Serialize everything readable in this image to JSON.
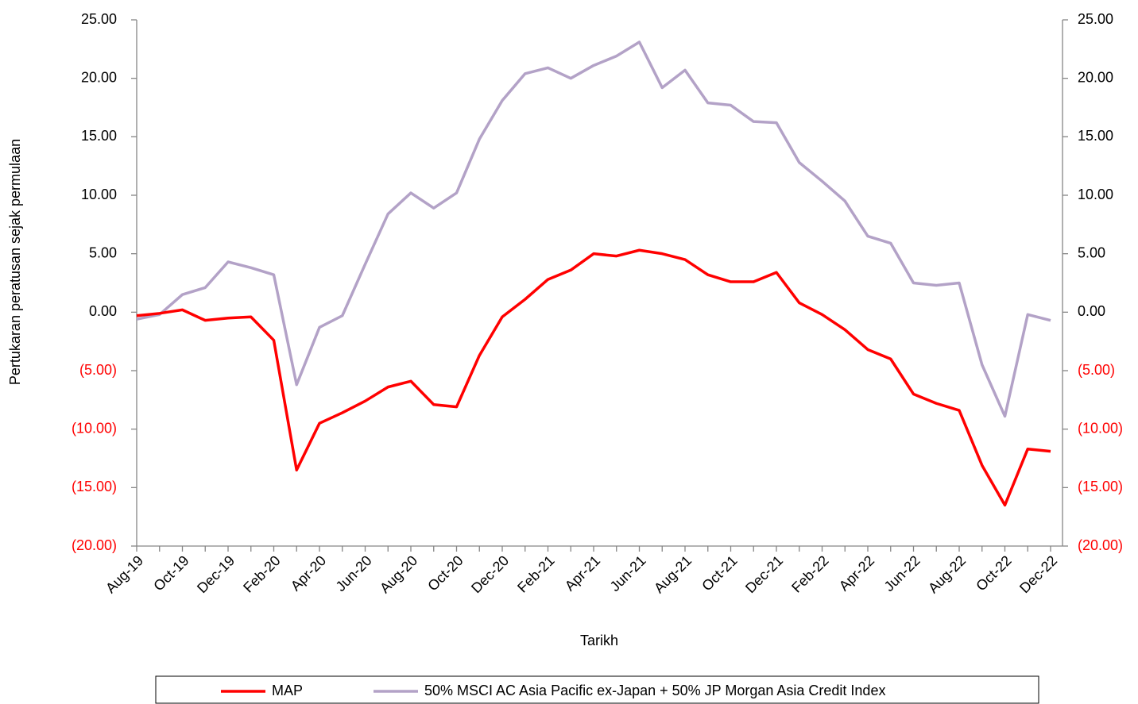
{
  "chart_data": {
    "type": "line",
    "y_label": "Pertukaran peratusan sejak permulaan",
    "x_label": "Tarikh",
    "categories": [
      "Aug-19",
      null,
      "Oct-19",
      null,
      "Dec-19",
      null,
      "Feb-20",
      null,
      "Apr-20",
      null,
      "Jun-20",
      null,
      "Aug-20",
      null,
      "Oct-20",
      null,
      "Dec-20",
      null,
      "Feb-21",
      null,
      "Apr-21",
      null,
      "Jun-21",
      null,
      "Aug-21",
      null,
      "Oct-21",
      null,
      "Dec-21",
      null,
      "Feb-22",
      null,
      "Apr-22",
      null,
      "Jun-22",
      null,
      "Aug-22",
      null,
      "Oct-22",
      null,
      "Dec-22"
    ],
    "series": [
      {
        "name": "MAP",
        "color": "#ff0000",
        "values": [
          -0.3,
          -0.1,
          0.2,
          -0.7,
          -0.5,
          -0.4,
          -2.4,
          -13.5,
          -9.5,
          -8.6,
          -7.6,
          -6.4,
          -5.9,
          -7.9,
          -8.1,
          -3.7,
          -0.4,
          1.1,
          2.8,
          3.6,
          5.0,
          4.8,
          5.3,
          5.0,
          4.5,
          3.2,
          2.6,
          2.6,
          3.4,
          0.8,
          -0.2,
          -1.5,
          -3.2,
          -4.0,
          -7.0,
          -7.8,
          -8.4,
          -13.1,
          -16.5,
          -11.7,
          -11.9
        ]
      },
      {
        "name": "50% MSCI AC Asia Pacific ex-Japan + 50% JP Morgan Asia Credit Index",
        "color": "#b3a2c7",
        "values": [
          -0.6,
          -0.2,
          1.5,
          2.1,
          4.3,
          3.8,
          3.2,
          -6.2,
          -1.3,
          -0.3,
          4.1,
          8.4,
          10.2,
          8.9,
          10.2,
          14.8,
          18.1,
          20.4,
          20.9,
          20.0,
          21.1,
          21.9,
          23.1,
          19.2,
          20.7,
          17.9,
          17.7,
          16.3,
          16.2,
          12.8,
          11.2,
          9.5,
          6.5,
          5.9,
          2.5,
          2.3,
          2.5,
          -4.5,
          -8.9,
          -0.2,
          -0.7
        ]
      }
    ],
    "ylim": [
      -20,
      25
    ],
    "yticks": [
      {
        "value": -20,
        "label": "(20.00)"
      },
      {
        "value": -15,
        "label": "(15.00)"
      },
      {
        "value": -10,
        "label": "(10.00)"
      },
      {
        "value": -5,
        "label": "(5.00)"
      },
      {
        "value": 0,
        "label": "0.00"
      },
      {
        "value": 5,
        "label": "5.00"
      },
      {
        "value": 10,
        "label": "10.00"
      },
      {
        "value": 15,
        "label": "15.00"
      },
      {
        "value": 20,
        "label": "20.00"
      },
      {
        "value": 25,
        "label": "25.00"
      }
    ],
    "y2lim": [
      -20,
      25
    ],
    "y2ticks": [
      {
        "value": -20,
        "label": "(20.00)"
      },
      {
        "value": -15,
        "label": "(15.00)"
      },
      {
        "value": -10,
        "label": "(10.00)"
      },
      {
        "value": -5,
        "label": "(5.00)"
      },
      {
        "value": 0,
        "label": "0.00"
      },
      {
        "value": 5,
        "label": "5.00"
      },
      {
        "value": 10,
        "label": "10.00"
      },
      {
        "value": 15,
        "label": "15.00"
      },
      {
        "value": 20,
        "label": "20.00"
      },
      {
        "value": 25,
        "label": "25.00"
      }
    ],
    "negative_tick_color": "#ff0000",
    "grid": false,
    "legend": "bottom"
  }
}
